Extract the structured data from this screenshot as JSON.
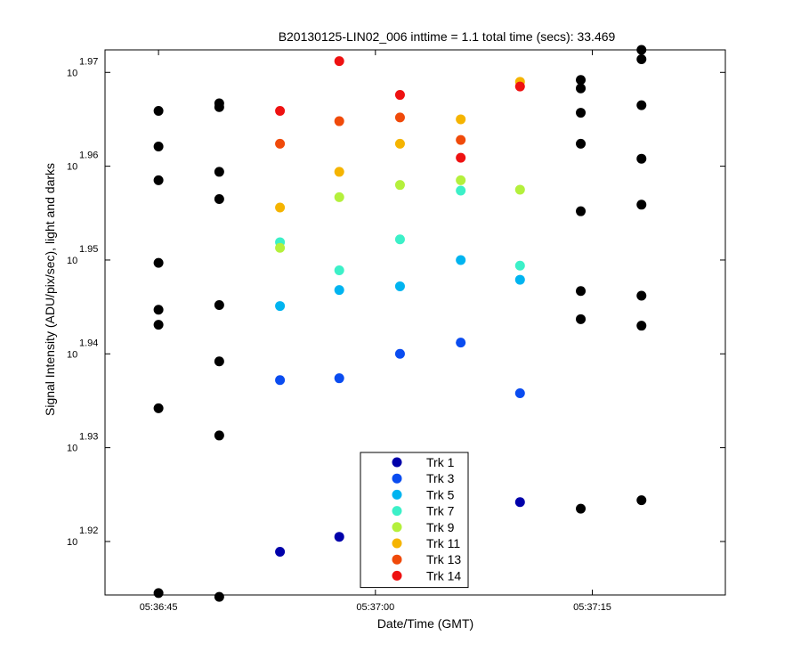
{
  "chart_data": {
    "type": "scatter",
    "title": "B20130125-LIN02_006 inttime = 1.1 total time (secs): 33.469",
    "xlabel": "Date/Time (GMT)",
    "ylabel": "Signal Intensity (ADU/pix/sec), light and darks",
    "x_tick_labels": [
      "05:36:45",
      "05:37:00",
      "05:37:15"
    ],
    "x_ticks_seconds": [
      0,
      15,
      30
    ],
    "xlim_seconds": [
      -3.7,
      39.2
    ],
    "y_tick_base": "10",
    "y_tick_exponents": [
      "1.92",
      "1.93",
      "1.94",
      "1.95",
      "1.96",
      "1.97"
    ],
    "y_ticks": [
      1.92,
      1.93,
      1.94,
      1.95,
      1.96,
      1.97
    ],
    "ylim": [
      1.9143,
      1.9724
    ],
    "x_positions_seconds": [
      0,
      4.2,
      8.4,
      12.5,
      16.7,
      20.9,
      25.0,
      29.2,
      33.4
    ],
    "series": [
      {
        "name": "Trk 1",
        "color": "#0000aa",
        "points": [
          [
            8.4,
            1.9189
          ],
          [
            12.5,
            1.9205
          ],
          [
            25.0,
            1.9242
          ]
        ]
      },
      {
        "name": "Trk 3",
        "color": "#0a4cf0",
        "points": [
          [
            8.4,
            1.9372
          ],
          [
            12.5,
            1.9374
          ],
          [
            16.7,
            1.94
          ],
          [
            20.9,
            1.9412
          ],
          [
            25.0,
            1.9358
          ]
        ]
      },
      {
        "name": "Trk 5",
        "color": "#00b4f0",
        "points": [
          [
            8.4,
            1.9451
          ],
          [
            12.5,
            1.9468
          ],
          [
            16.7,
            1.9472
          ],
          [
            20.9,
            1.95
          ],
          [
            25.0,
            1.9479
          ]
        ]
      },
      {
        "name": "Trk 7",
        "color": "#3cf0c8",
        "points": [
          [
            8.4,
            1.9519
          ],
          [
            12.5,
            1.9489
          ],
          [
            16.7,
            1.9522
          ],
          [
            20.9,
            1.9574
          ],
          [
            25.0,
            1.9494
          ]
        ]
      },
      {
        "name": "Trk 9",
        "color": "#b4f03c",
        "points": [
          [
            8.4,
            1.9513
          ],
          [
            12.5,
            1.9567
          ],
          [
            16.7,
            1.958
          ],
          [
            20.9,
            1.9585
          ],
          [
            25.0,
            1.9575
          ]
        ]
      },
      {
        "name": "Trk 11",
        "color": "#f5b400",
        "points": [
          [
            8.4,
            1.9556
          ],
          [
            12.5,
            1.9594
          ],
          [
            16.7,
            1.9624
          ],
          [
            20.9,
            1.965
          ],
          [
            25.0,
            1.969
          ]
        ]
      },
      {
        "name": "Trk 13",
        "color": "#f04a0a",
        "points": [
          [
            8.4,
            1.9624
          ],
          [
            12.5,
            1.9648
          ],
          [
            16.7,
            1.9652
          ],
          [
            20.9,
            1.9628
          ]
        ]
      },
      {
        "name": "Trk 14",
        "color": "#ee1111",
        "points": [
          [
            8.4,
            1.9659
          ],
          [
            12.5,
            1.9712
          ],
          [
            16.7,
            1.9676
          ],
          [
            20.9,
            1.9609
          ],
          [
            25.0,
            1.9685
          ]
        ]
      }
    ],
    "darks": {
      "name": "darks",
      "color": "#000000",
      "points": [
        [
          0,
          1.9659
        ],
        [
          0,
          1.9621
        ],
        [
          0,
          1.9585
        ],
        [
          0,
          1.9497
        ],
        [
          0,
          1.9447
        ],
        [
          0,
          1.9431
        ],
        [
          0,
          1.9342
        ],
        [
          0,
          1.9145
        ],
        [
          4.2,
          1.9667
        ],
        [
          4.2,
          1.9663
        ],
        [
          4.2,
          1.9594
        ],
        [
          4.2,
          1.9565
        ],
        [
          4.2,
          1.9452
        ],
        [
          4.2,
          1.9392
        ],
        [
          4.2,
          1.9313
        ],
        [
          4.2,
          1.9141
        ],
        [
          29.2,
          1.9692
        ],
        [
          29.2,
          1.9683
        ],
        [
          29.2,
          1.9657
        ],
        [
          29.2,
          1.9624
        ],
        [
          29.2,
          1.9552
        ],
        [
          29.2,
          1.9467
        ],
        [
          29.2,
          1.9437
        ],
        [
          29.2,
          1.9235
        ],
        [
          33.4,
          1.9724
        ],
        [
          33.4,
          1.9714
        ],
        [
          33.4,
          1.9665
        ],
        [
          33.4,
          1.9608
        ],
        [
          33.4,
          1.9559
        ],
        [
          33.4,
          1.9462
        ],
        [
          33.4,
          1.943
        ],
        [
          33.4,
          1.9244
        ]
      ]
    },
    "legend_position": "lower-center",
    "grid": false
  }
}
